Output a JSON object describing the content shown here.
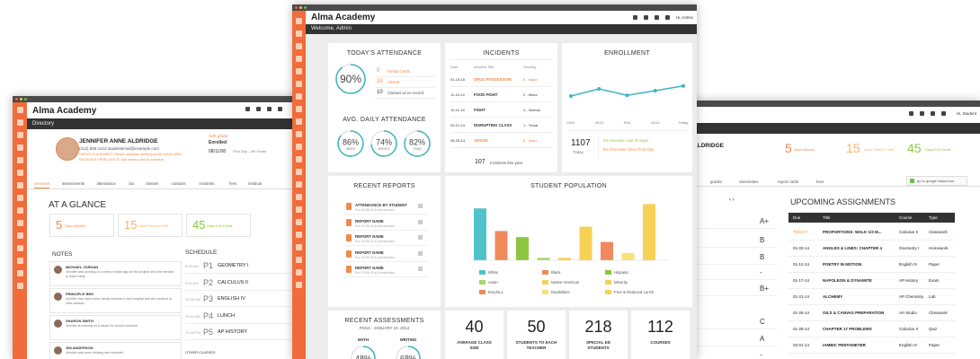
{
  "dashboard": {
    "app_name": "Alma Academy",
    "welcome": "Welcome, Admin",
    "user": "Hi, Admin",
    "attendance": {
      "title": "TODAY'S ATTENDANCE",
      "today": {
        "value": 90,
        "label": "90%"
      },
      "items": [
        {
          "count": 5,
          "text": "Partial Credit"
        },
        {
          "count": 15,
          "text": "Absent"
        },
        {
          "count": 10,
          "text": "Classes w/ no record"
        }
      ],
      "avg_title": "AVG. DAILY ATTENDANCE",
      "avg": [
        {
          "value": 86,
          "label": "86%",
          "period": "WEEK"
        },
        {
          "value": 74,
          "label": "74%",
          "period": "MONTH"
        },
        {
          "value": 82,
          "label": "82%",
          "period": "YEAR"
        }
      ]
    },
    "incidents": {
      "title": "INCIDENTS",
      "columns": [
        "Date",
        "Incident Title",
        "Severity"
      ],
      "rows": [
        [
          "01-15-15",
          "DRUG POSSESSION",
          "5 - Major"
        ],
        [
          "11-10-14",
          "FOOD FIGHT",
          "2 - Minor"
        ],
        [
          "10-11-14",
          "FIGHT",
          "3 - Normal"
        ],
        [
          "09-21-14",
          "DISRUPTING CLASS",
          "1 - Trivial"
        ],
        [
          "08-25-14",
          "ARSON",
          "5 - Major"
        ]
      ],
      "total": 107,
      "total_text": "Incidents this year"
    },
    "enrollment": {
      "title": "ENROLLMENT",
      "type": "line",
      "categories": [
        "2012",
        "2013",
        "9/14",
        "11/14",
        "Today"
      ],
      "values": [
        40,
        60,
        42,
        55,
        68
      ],
      "ylim": [
        0,
        100
      ],
      "color": "#3db5c0",
      "count": 1107,
      "count_label": "Today",
      "changes": [
        "2% Increase Last 30 Days",
        "5% Decrease Since First Day"
      ]
    },
    "reports": {
      "title": "RECENT REPORTS",
      "items": [
        {
          "name": "ATTENDANCE BY STUDENT",
          "meta": "Run 01/05/15 by Administrator"
        },
        {
          "name": "REPORT NAME",
          "meta": "Run 01/05/15 by Administrator"
        },
        {
          "name": "REPORT NAME",
          "meta": "Run 01/05/15 by Administrator"
        },
        {
          "name": "REPORT NAME",
          "meta": "Run 01/05/15 by Administrator"
        },
        {
          "name": "REPORT NAME",
          "meta": "Run 01/05/15 by Administrator"
        }
      ]
    },
    "population": {
      "title": "STUDENT POPULATION",
      "type": "bar",
      "ylim": [
        0,
        100
      ],
      "series": [
        {
          "name": "White",
          "color": "#4ec3c9",
          "values": [
            85
          ]
        },
        {
          "name": "Black",
          "color": "#f08a5d",
          "values": [
            48
          ]
        },
        {
          "name": "Hispanic",
          "color": "#8cc63f",
          "values": [
            38
          ]
        },
        {
          "name": "Asian",
          "color": "#a8d86a",
          "values": [
            4
          ]
        },
        {
          "name": "Native American",
          "color": "#f7d154",
          "values": [
            4
          ]
        },
        {
          "name": "Minority",
          "color": "#f7d154",
          "values": [
            55
          ]
        },
        {
          "name": "ESL/ELL",
          "color": "#f08a5d",
          "values": [
            30
          ]
        },
        {
          "name": "Disabilities",
          "color": "#f9e27a",
          "values": [
            12
          ]
        },
        {
          "name": "Free & Reduced Lunch",
          "color": "#f7d154",
          "values": [
            92
          ]
        }
      ]
    },
    "assessments": {
      "title": "RECENT ASSESSMENTS",
      "subtitle": "PSSA · JANUARY 10, 2014",
      "items": [
        {
          "subject": "MATH",
          "value": 48,
          "label": "48%"
        },
        {
          "subject": "WRITING",
          "value": 68,
          "label": "68%"
        }
      ]
    },
    "stats": [
      {
        "value": 40,
        "label": "AVERAGE CLASS SIZE"
      },
      {
        "value": 50,
        "label": "STUDENTS TO EACH TEACHER"
      },
      {
        "value": 218,
        "label": "SPECIAL ED STUDENTS"
      },
      {
        "value": 112,
        "label": "COURSES"
      }
    ]
  },
  "directory": {
    "app_name": "Alma Academy",
    "section": "Directory",
    "student": {
      "name": "JENNIFER ANNE ALDRIDGE",
      "contact": "(212) 555-1212   studentemail@example.com",
      "alerts": [
        "NEEDS PLACEMENT: Please schedule meeting at the school office",
        "RECEIVES FREE LUNCH: Add dietary plan to schedule"
      ],
      "grade": "11th grade",
      "enrolled_label": "Enrolled",
      "enrolled_date": "08/11/08",
      "enrolled_note": "First Day - 4th Grade"
    },
    "tabs": [
      "overview",
      "assessments",
      "attendance",
      "bio",
      "classes",
      "contacts",
      "incidents",
      "fees",
      "medical"
    ],
    "glance_title": "AT A GLANCE",
    "glance": [
      {
        "count": 5,
        "text": "Days Missed"
      },
      {
        "count": 15,
        "text": "Days Partial Credit"
      },
      {
        "count": 45,
        "text": "Days Full Credit"
      }
    ],
    "notes_title": "NOTES",
    "notes": [
      {
        "author": "MICHAEL JORDAN",
        "text": "Jennifer was working on a demo mobile app for the project and she needed to leave early."
      },
      {
        "author": "PRINCIPLE BRO",
        "text": "Jennifer has had a close family member in the hospital and will continue to miss classes."
      },
      {
        "author": "SHARON SMITH",
        "text": "Jennifer is working on a cause for school outreach."
      },
      {
        "author": "JIM ANDERSON",
        "text": "Jennifer was seen helping new students."
      }
    ],
    "schedule_title": "SCHEDULE",
    "schedule": [
      {
        "time": "8:00 AM",
        "period": "P1",
        "course": "GEOMETRY I"
      },
      {
        "time": "9:00 AM",
        "period": "P2",
        "course": "CALCULUS II"
      },
      {
        "time": "10:00 AM",
        "period": "P3",
        "course": "ENGLISH IV"
      },
      {
        "time": "11:00 AM",
        "period": "P4",
        "course": "LUNCH"
      },
      {
        "time": "12:00 PM",
        "period": "P5",
        "course": "AP HISTORY"
      }
    ],
    "other_classes": "OTHER CLASSES"
  },
  "student_view": {
    "user": "Hi, Student",
    "student_name": "JENNIFER ANNE ALDRIDGE",
    "glance": [
      {
        "count": 5,
        "text": "Days Missed"
      },
      {
        "count": 15,
        "text": "Days Partial Credit"
      },
      {
        "count": 45,
        "text": "Days Full Credit"
      }
    ],
    "tabs": [
      "grades",
      "classmates",
      "report cards",
      "fees"
    ],
    "classroom_button": "go to google classroom",
    "grades": [
      "A+",
      "B",
      "B",
      "-",
      "B+",
      "C",
      "A",
      "-"
    ],
    "assignments_title": "UPCOMING ASSIGNMENTS",
    "columns": [
      "Due",
      "Title",
      "Course",
      "Type"
    ],
    "assignments": [
      [
        "TODAY!",
        "PROPORTIONS: WALK 1/3 M...",
        "Calculus II",
        "Classwork"
      ],
      [
        "01-03-14",
        "ANGLES & LINES: CHAPTER 4",
        "Geometry I",
        "Homework"
      ],
      [
        "01-12-14",
        "POETRY IN MOTION",
        "English IV",
        "Paper"
      ],
      [
        "01-17-14",
        "NAPOLEON & DYNAMITE",
        "AP History",
        "Exam"
      ],
      [
        "01-21-14",
        "ALCHEMY",
        "AP Chemistry",
        "Lab"
      ],
      [
        "01-26-14",
        "OILS & CANVAS PREPARATION",
        "Art Studio",
        "Classwork"
      ],
      [
        "01-29-14",
        "CHAPTER 17 PROBLEMS",
        "Calculus II",
        "Quiz"
      ],
      [
        "02-01-14",
        "IAMBIC PENTAMETER",
        "English IV",
        "Paper"
      ]
    ]
  }
}
